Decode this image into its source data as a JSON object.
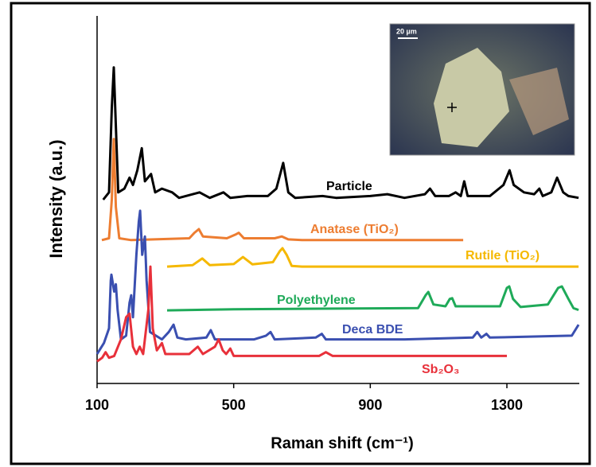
{
  "chart_data": {
    "type": "line",
    "xlabel": "Raman shift  (cm⁻¹)",
    "ylabel": "Intensity (a.u.)",
    "xlim": [
      100,
      1512
    ],
    "xticks": [
      100,
      500,
      900,
      1300
    ],
    "ylim": [
      0,
      100
    ],
    "inset_scale_label": "20 µm",
    "series": [
      {
        "name": "Particle",
        "color": "#000000",
        "x": [
          118,
          135,
          143,
          149,
          155,
          162,
          180,
          195,
          205,
          218,
          231,
          240,
          258,
          270,
          290,
          320,
          340,
          400,
          430,
          470,
          490,
          540,
          600,
          625,
          645,
          660,
          680,
          760,
          800,
          900,
          950,
          1000,
          1060,
          1075,
          1090,
          1130,
          1150,
          1165,
          1175,
          1185,
          1250,
          1290,
          1308,
          1320,
          1350,
          1380,
          1395,
          1405,
          1430,
          1447,
          1465,
          1480,
          1510
        ],
        "values": [
          50,
          52,
          75,
          86,
          70,
          52,
          53,
          56,
          54,
          58,
          64,
          55,
          57,
          52,
          53,
          52,
          50.5,
          52,
          50.5,
          52,
          50.5,
          51,
          51,
          53,
          60,
          52,
          50.5,
          51,
          50.5,
          51,
          51.5,
          50.5,
          51.5,
          53,
          51,
          51,
          52,
          51,
          55,
          51,
          51,
          54,
          58,
          54,
          52,
          51.5,
          53,
          51,
          52,
          56,
          52,
          51,
          50.5
        ]
      },
      {
        "name": "Anatase (TiO₂)",
        "color": "#ed7d31",
        "x": [
          114,
          135,
          143,
          149,
          155,
          165,
          200,
          370,
          385,
          398,
          410,
          480,
          505,
          515,
          530,
          620,
          641,
          660,
          700,
          1172
        ],
        "values": [
          39,
          39.5,
          50,
          66.5,
          48,
          39.5,
          39,
          39.5,
          41,
          42,
          40,
          39.5,
          40.5,
          41,
          39.5,
          39.5,
          40,
          39.2,
          39,
          39
        ]
      },
      {
        "name": "Rutile (TiO₂)",
        "color": "#f5b800",
        "x": [
          305,
          380,
          408,
          430,
          500,
          527,
          555,
          615,
          635,
          643,
          655,
          670,
          700,
          1510
        ],
        "values": [
          31.8,
          32.2,
          34,
          32.2,
          32.5,
          34.4,
          32.4,
          33,
          36,
          36.8,
          35,
          32,
          31.8,
          31.8
        ]
      },
      {
        "name": "Polyethylene",
        "color": "#1faa59",
        "x": [
          305,
          500,
          1040,
          1062,
          1070,
          1085,
          1120,
          1133,
          1140,
          1150,
          1280,
          1300,
          1307,
          1318,
          1340,
          1420,
          1450,
          1461,
          1480,
          1495,
          1510
        ],
        "values": [
          19.9,
          20.2,
          20.5,
          24,
          24.9,
          21.5,
          21,
          23,
          23.2,
          21,
          21,
          26,
          26.4,
          23,
          20.8,
          21.5,
          26,
          26.4,
          23,
          20.5,
          20
        ]
      },
      {
        "name": "Deca BDE",
        "color": "#3a4fb0",
        "x": [
          100,
          120,
          135,
          140,
          142,
          150,
          155,
          160,
          170,
          185,
          195,
          200,
          205,
          215,
          222,
          226,
          232,
          240,
          245,
          255,
          290,
          310,
          324,
          335,
          360,
          420,
          433,
          445,
          560,
          595,
          608,
          620,
          740,
          758,
          770,
          1000,
          1200,
          1213,
          1225,
          1240,
          1250,
          1490,
          1510
        ],
        "values": [
          8,
          11,
          15,
          28,
          29.6,
          25,
          27,
          20,
          12,
          13,
          22,
          24,
          18,
          35,
          44,
          47,
          35,
          40,
          28,
          14,
          12,
          14,
          16,
          12.5,
          12,
          12.5,
          14.5,
          12,
          12,
          13,
          14,
          12,
          12.5,
          13.5,
          12,
          12,
          12.5,
          14,
          12.5,
          13.5,
          12.5,
          13,
          16
        ]
      },
      {
        "name": "Sb₂O₃",
        "color": "#e8303a",
        "x": [
          100,
          115,
          125,
          135,
          150,
          170,
          185,
          195,
          205,
          215,
          225,
          235,
          250,
          256,
          263,
          275,
          290,
          300,
          370,
          395,
          410,
          445,
          456,
          468,
          478,
          490,
          500,
          750,
          770,
          790,
          1300
        ],
        "values": [
          6,
          7,
          8.5,
          7,
          7.5,
          12,
          18,
          19,
          10,
          8,
          10,
          8,
          20,
          31.8,
          15,
          9,
          11,
          8,
          8,
          10,
          8,
          10,
          12,
          9,
          8,
          9.5,
          7.5,
          7.5,
          8.5,
          7.5,
          7.5
        ]
      }
    ]
  }
}
